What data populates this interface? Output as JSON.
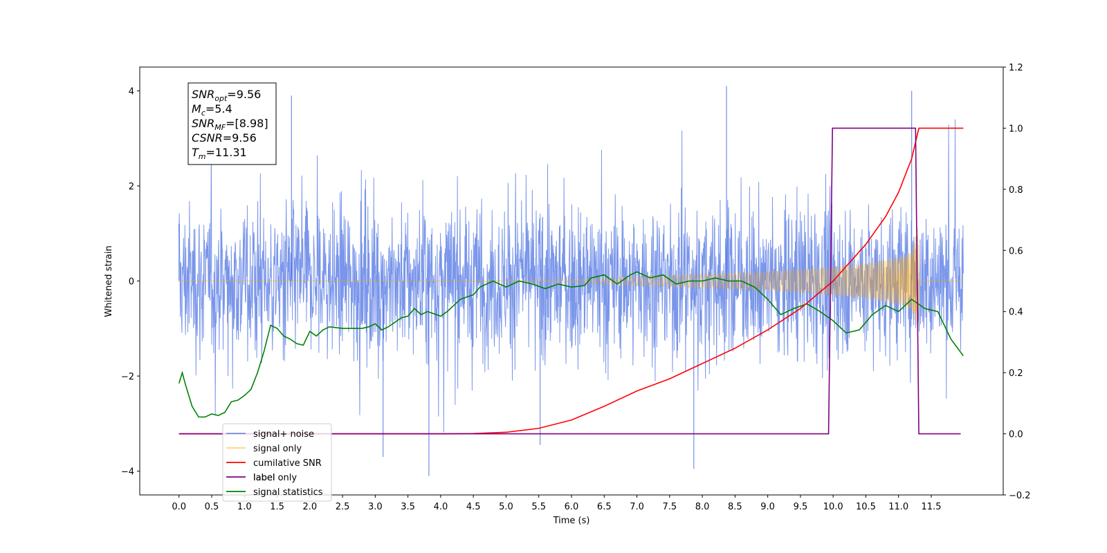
{
  "chart_data": {
    "type": "line",
    "xlabel": "Time (s)",
    "ylabel": "Whitened strain",
    "xlim": [
      -0.6,
      12.6
    ],
    "ylim": [
      -4.5,
      4.5
    ],
    "ylim_right": [
      -0.2,
      1.2
    ],
    "x_ticks": [
      0.0,
      0.5,
      1.0,
      1.5,
      2.0,
      2.5,
      3.0,
      3.5,
      4.0,
      4.5,
      5.0,
      5.5,
      6.0,
      6.5,
      7.0,
      7.5,
      8.0,
      8.5,
      9.0,
      9.5,
      10.0,
      10.5,
      11.0,
      11.5
    ],
    "x_tick_labels": [
      "0.0",
      "0.5",
      "1.0",
      "1.5",
      "2.0",
      "2.5",
      "3.0",
      "3.5",
      "4.0",
      "4.5",
      "5.0",
      "5.5",
      "6.0",
      "6.5",
      "7.0",
      "7.5",
      "8.0",
      "8.5",
      "9.0",
      "9.5",
      "10.0",
      "10.5",
      "11.0",
      "11.5"
    ],
    "y_ticks_left": [
      -4,
      -2,
      0,
      2,
      4
    ],
    "y_tick_labels_left": [
      "−4",
      "−2",
      "0",
      "2",
      "4"
    ],
    "y_ticks_right": [
      -0.2,
      0.0,
      0.2,
      0.4,
      0.6,
      0.8,
      1.0,
      1.2
    ],
    "y_tick_labels_right": [
      "−0.2",
      "0.0",
      "0.2",
      "0.4",
      "0.6",
      "0.8",
      "1.0",
      "1.2"
    ],
    "annotation": [
      {
        "sym": "SNR",
        "sub": "opt",
        "val": "=9.56"
      },
      {
        "sym": "M",
        "sub": "c",
        "val": "=5.4"
      },
      {
        "sym": "SNR",
        "sub": "MF",
        "val": "=[8.98]"
      },
      {
        "sym": "CSNR",
        "sub": "",
        "val": "=9.56"
      },
      {
        "sym": "T",
        "sub": "m",
        "val": "=11.31"
      }
    ],
    "legend": [
      {
        "label": "signal+ noise",
        "color": "#4169e1",
        "alpha": 0.7
      },
      {
        "label": "signal only",
        "color": "#ffa500",
        "alpha": 0.5
      },
      {
        "label": "cumilative SNR",
        "color": "#ff0000",
        "alpha": 1
      },
      {
        "label": "label",
        "color": "#800080",
        "alpha": 1
      },
      {
        "label": "signal statistics",
        "color": "#008000",
        "alpha": 1
      }
    ],
    "hidden_legend_text": "label only",
    "legend_placement": "lower-left",
    "grid": false,
    "series": [
      {
        "name": "signal+ noise",
        "axis": "left",
        "kind": "noise_band",
        "color": "#4169e1",
        "x_range": [
          0.0,
          11.99
        ],
        "typical_envelope": 2.1,
        "peaks": [
          [
            0.0,
            1.2
          ],
          [
            1.72,
            3.9
          ],
          [
            3.82,
            -4.1
          ],
          [
            7.87,
            -3.95
          ],
          [
            8.37,
            4.1
          ],
          [
            11.2,
            4.0
          ],
          [
            3.12,
            -3.7
          ],
          [
            5.52,
            -3.45
          ]
        ]
      },
      {
        "name": "signal only",
        "axis": "left",
        "kind": "chirp",
        "color": "#ffa500",
        "t_start": 0.0,
        "t_merger": 11.31,
        "t_end": 11.99,
        "envelope": [
          [
            0.0,
            0.0
          ],
          [
            4.0,
            0.005
          ],
          [
            6.0,
            0.03
          ],
          [
            7.0,
            0.1
          ],
          [
            8.0,
            0.15
          ],
          [
            9.0,
            0.2
          ],
          [
            9.5,
            0.25
          ],
          [
            10.0,
            0.3
          ],
          [
            10.5,
            0.38
          ],
          [
            11.0,
            0.5
          ],
          [
            11.2,
            0.62
          ],
          [
            11.31,
            1.2
          ]
        ]
      },
      {
        "name": "cumilative SNR",
        "axis": "right",
        "color": "#ff0000",
        "points": [
          [
            0.0,
            0.0
          ],
          [
            4.0,
            0.0
          ],
          [
            4.5,
            0.001
          ],
          [
            5.0,
            0.005
          ],
          [
            5.5,
            0.018
          ],
          [
            6.0,
            0.045
          ],
          [
            6.5,
            0.09
          ],
          [
            7.0,
            0.14
          ],
          [
            7.5,
            0.18
          ],
          [
            8.0,
            0.23
          ],
          [
            8.5,
            0.28
          ],
          [
            9.0,
            0.34
          ],
          [
            9.5,
            0.41
          ],
          [
            10.0,
            0.5
          ],
          [
            10.5,
            0.62
          ],
          [
            10.8,
            0.71
          ],
          [
            11.0,
            0.79
          ],
          [
            11.2,
            0.9
          ],
          [
            11.31,
            1.0
          ],
          [
            11.99,
            1.0
          ]
        ]
      },
      {
        "name": "label",
        "axis": "right",
        "color": "#800080",
        "points": [
          [
            0.0,
            0.0
          ],
          [
            9.93,
            0.0
          ],
          [
            9.99,
            1.0
          ],
          [
            11.26,
            1.0
          ],
          [
            11.31,
            0.0
          ],
          [
            11.95,
            0.0
          ]
        ]
      },
      {
        "name": "signal statistics",
        "axis": "right",
        "color": "#008000",
        "points": [
          [
            0.0,
            0.165
          ],
          [
            0.05,
            0.2
          ],
          [
            0.1,
            0.16
          ],
          [
            0.2,
            0.09
          ],
          [
            0.3,
            0.055
          ],
          [
            0.4,
            0.055
          ],
          [
            0.5,
            0.065
          ],
          [
            0.6,
            0.06
          ],
          [
            0.7,
            0.07
          ],
          [
            0.8,
            0.105
          ],
          [
            0.9,
            0.11
          ],
          [
            1.0,
            0.125
          ],
          [
            1.1,
            0.145
          ],
          [
            1.2,
            0.2
          ],
          [
            1.3,
            0.27
          ],
          [
            1.4,
            0.355
          ],
          [
            1.5,
            0.345
          ],
          [
            1.6,
            0.32
          ],
          [
            1.7,
            0.31
          ],
          [
            1.8,
            0.295
          ],
          [
            1.9,
            0.29
          ],
          [
            2.0,
            0.335
          ],
          [
            2.1,
            0.32
          ],
          [
            2.2,
            0.34
          ],
          [
            2.3,
            0.35
          ],
          [
            2.5,
            0.345
          ],
          [
            2.7,
            0.345
          ],
          [
            2.8,
            0.345
          ],
          [
            2.9,
            0.35
          ],
          [
            3.0,
            0.36
          ],
          [
            3.1,
            0.34
          ],
          [
            3.2,
            0.35
          ],
          [
            3.3,
            0.365
          ],
          [
            3.4,
            0.38
          ],
          [
            3.5,
            0.385
          ],
          [
            3.6,
            0.41
          ],
          [
            3.7,
            0.39
          ],
          [
            3.8,
            0.4
          ],
          [
            4.0,
            0.385
          ],
          [
            4.1,
            0.4
          ],
          [
            4.3,
            0.44
          ],
          [
            4.5,
            0.455
          ],
          [
            4.6,
            0.48
          ],
          [
            4.8,
            0.5
          ],
          [
            5.0,
            0.48
          ],
          [
            5.2,
            0.5
          ],
          [
            5.4,
            0.49
          ],
          [
            5.6,
            0.475
          ],
          [
            5.8,
            0.49
          ],
          [
            6.0,
            0.48
          ],
          [
            6.2,
            0.485
          ],
          [
            6.3,
            0.51
          ],
          [
            6.5,
            0.52
          ],
          [
            6.7,
            0.49
          ],
          [
            6.9,
            0.52
          ],
          [
            7.0,
            0.53
          ],
          [
            7.2,
            0.51
          ],
          [
            7.4,
            0.52
          ],
          [
            7.6,
            0.49
          ],
          [
            7.8,
            0.5
          ],
          [
            8.0,
            0.5
          ],
          [
            8.2,
            0.51
          ],
          [
            8.4,
            0.5
          ],
          [
            8.6,
            0.5
          ],
          [
            8.8,
            0.48
          ],
          [
            9.0,
            0.44
          ],
          [
            9.2,
            0.39
          ],
          [
            9.4,
            0.41
          ],
          [
            9.6,
            0.425
          ],
          [
            9.8,
            0.4
          ],
          [
            10.0,
            0.37
          ],
          [
            10.2,
            0.33
          ],
          [
            10.4,
            0.34
          ],
          [
            10.6,
            0.39
          ],
          [
            10.8,
            0.42
          ],
          [
            11.0,
            0.4
          ],
          [
            11.2,
            0.44
          ],
          [
            11.4,
            0.41
          ],
          [
            11.6,
            0.4
          ],
          [
            11.8,
            0.31
          ],
          [
            11.99,
            0.255
          ]
        ]
      }
    ]
  }
}
